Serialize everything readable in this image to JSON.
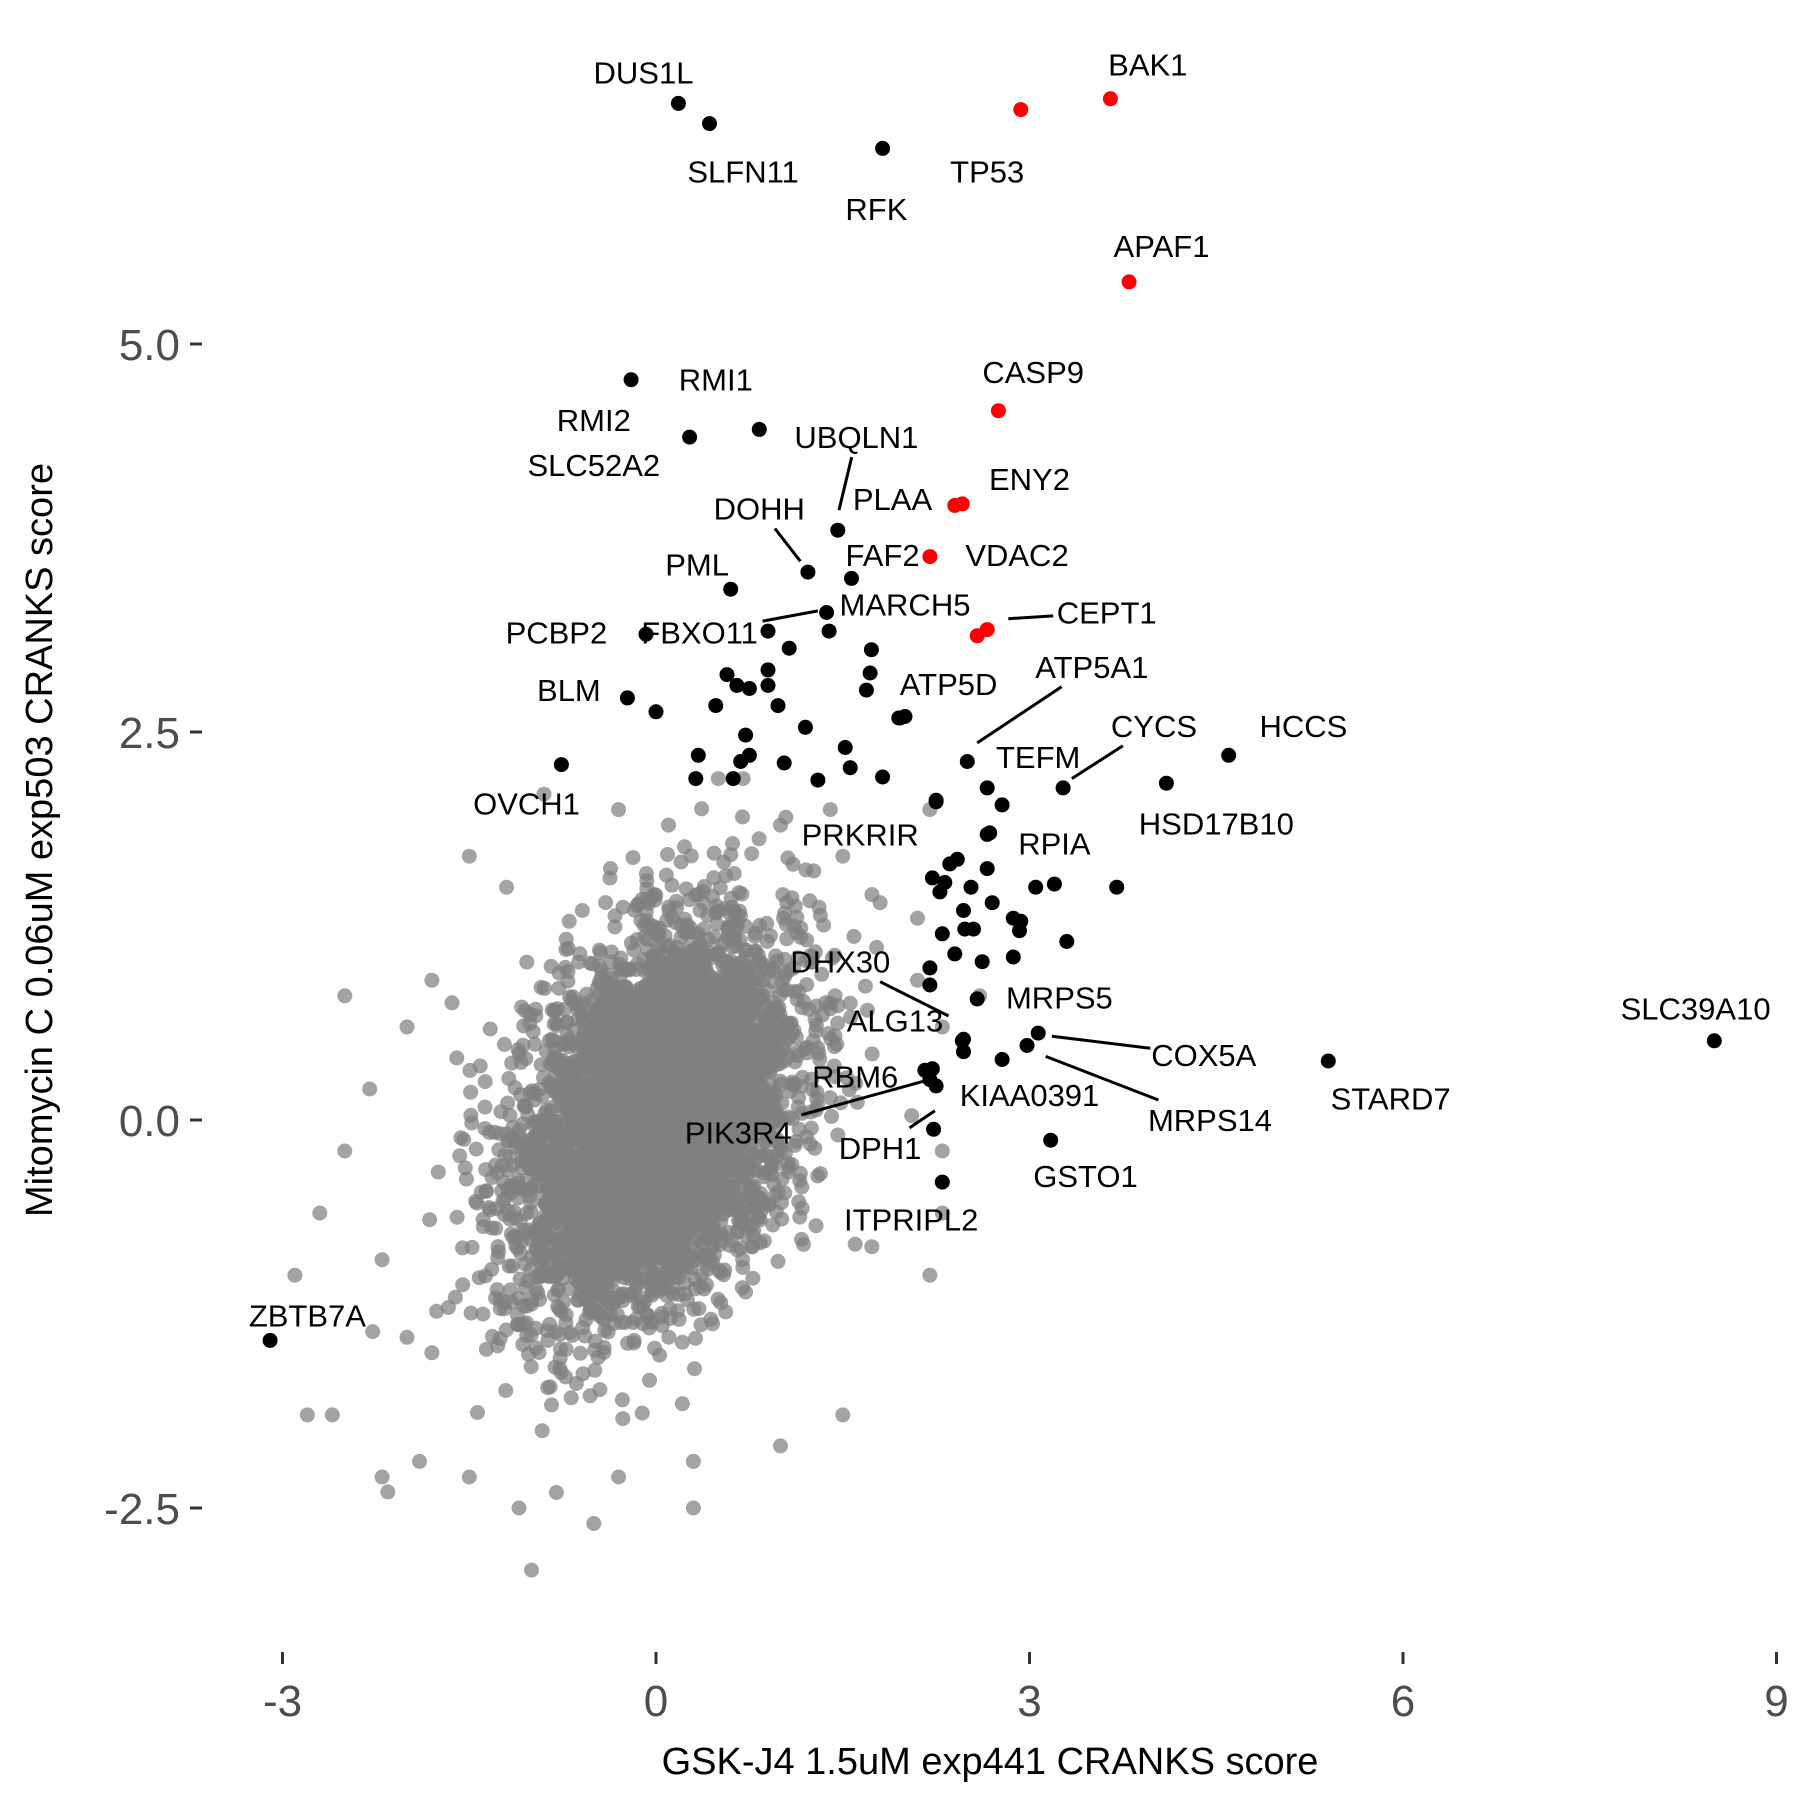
{
  "chart_data": {
    "type": "scatter",
    "title": "",
    "xlabel": "GSK-J4 1.5uM exp441 CRANKS score",
    "ylabel": "Mitomycin C 0.06uM exp503 CRANKS score",
    "xlim": [
      -3.4,
      9.0
    ],
    "ylim": [
      -3.4,
      7.2
    ],
    "x_ticks": [
      -3,
      0,
      3,
      6,
      9
    ],
    "x_tick_labels": [
      "-3",
      "0",
      "3",
      "6",
      "9"
    ],
    "y_ticks": [
      -2.5,
      0.0,
      2.5,
      5.0
    ],
    "y_tick_labels": [
      "-2.5",
      "0.0",
      "2.5",
      "5.0"
    ],
    "grid": false,
    "legend": "none",
    "colors": {
      "background": "#808080",
      "highlight": "#000000",
      "pathway": "#ff0000",
      "tick_text": "#4d4d4d"
    },
    "background_cloud": {
      "description_note": "",
      "count": 5000,
      "center": [
        0.0,
        0.0
      ],
      "sd": [
        0.55,
        0.6
      ],
      "correlation": 0.35
    },
    "background_outliers": [
      {
        "x": -2.5,
        "y": 0.8
      },
      {
        "x": -2.3,
        "y": 0.2
      },
      {
        "x": -2.0,
        "y": 0.6
      },
      {
        "x": -2.7,
        "y": -0.6
      },
      {
        "x": -2.5,
        "y": -0.2
      },
      {
        "x": -2.9,
        "y": -1.0
      },
      {
        "x": -2.8,
        "y": -1.9
      },
      {
        "x": -2.6,
        "y": -1.9
      },
      {
        "x": -2.2,
        "y": -2.3
      },
      {
        "x": -1.9,
        "y": -2.2
      },
      {
        "x": -2.0,
        "y": -1.4
      },
      {
        "x": -1.5,
        "y": -2.3
      },
      {
        "x": -1.1,
        "y": -2.5
      },
      {
        "x": -0.8,
        "y": -2.4
      },
      {
        "x": -1.0,
        "y": -2.9
      },
      {
        "x": -0.5,
        "y": -2.6
      },
      {
        "x": 0.3,
        "y": -2.2
      },
      {
        "x": 0.3,
        "y": -2.5
      },
      {
        "x": 1.0,
        "y": -2.1
      },
      {
        "x": 1.5,
        "y": -1.9
      },
      {
        "x": -1.5,
        "y": 1.7
      },
      {
        "x": -1.2,
        "y": 1.5
      },
      {
        "x": -0.9,
        "y": 2.1
      },
      {
        "x": -0.3,
        "y": 2.0
      },
      {
        "x": 0.1,
        "y": 1.9
      },
      {
        "x": 0.5,
        "y": 2.2
      },
      {
        "x": 0.7,
        "y": 2.2
      },
      {
        "x": 1.0,
        "y": 1.9
      },
      {
        "x": 1.4,
        "y": 2.0
      },
      {
        "x": 2.2,
        "y": 2.0
      },
      {
        "x": 1.5,
        "y": 1.7
      },
      {
        "x": 1.8,
        "y": 1.4
      },
      {
        "x": 2.1,
        "y": 0.9
      },
      {
        "x": 2.3,
        "y": 0.6
      },
      {
        "x": 2.3,
        "y": -0.2
      },
      {
        "x": 2.3,
        "y": -0.6
      },
      {
        "x": 2.2,
        "y": -1.0
      },
      {
        "x": 1.6,
        "y": -0.8
      },
      {
        "x": 2.1,
        "y": 1.3
      },
      {
        "x": 2.6,
        "y": 0.8
      },
      {
        "x": -1.8,
        "y": 0.9
      },
      {
        "x": -1.6,
        "y": 0.4
      },
      {
        "x": -2.2,
        "y": -0.9
      },
      {
        "x": -1.8,
        "y": -1.5
      },
      {
        "x": -0.3,
        "y": -2.3
      }
    ],
    "highlighted_points": [
      {
        "label": "DUS1L",
        "x": 0.18,
        "y": 6.55,
        "color": "#000000"
      },
      {
        "label": "SLFN11",
        "x": 0.43,
        "y": 6.42,
        "color": "#000000"
      },
      {
        "label": "RFK",
        "x": 1.82,
        "y": 6.26,
        "color": "#000000"
      },
      {
        "label": "TP53",
        "x": 2.93,
        "y": 6.51,
        "color": "#ff0000"
      },
      {
        "label": "BAK1",
        "x": 3.65,
        "y": 6.58,
        "color": "#ff0000"
      },
      {
        "label": "APAF1",
        "x": 3.8,
        "y": 5.4,
        "color": "#ff0000"
      },
      {
        "label": "RMI1",
        "x": -0.2,
        "y": 4.77,
        "color": "#000000"
      },
      {
        "label": "RMI2",
        "x": 0.27,
        "y": 4.4,
        "color": "#000000"
      },
      {
        "label": "SLC52A2",
        "x": 0.83,
        "y": 4.45,
        "color": "#000000"
      },
      {
        "label": "CASP9",
        "x": 2.75,
        "y": 4.57,
        "color": "#ff0000"
      },
      {
        "label": "UBQLN1",
        "x": 1.46,
        "y": 3.8,
        "color": "#000000"
      },
      {
        "label": "PLAA",
        "x": 2.4,
        "y": 3.96,
        "color": "#ff0000"
      },
      {
        "label": "ENY2",
        "x": 2.46,
        "y": 3.97,
        "color": "#ff0000"
      },
      {
        "label": "DOHH",
        "x": 1.22,
        "y": 3.53,
        "color": "#000000"
      },
      {
        "label": "FAF2",
        "x": 1.57,
        "y": 3.49,
        "color": "#000000"
      },
      {
        "label": "VDAC2",
        "x": 2.2,
        "y": 3.63,
        "color": "#ff0000"
      },
      {
        "label": "PML",
        "x": 0.6,
        "y": 3.42,
        "color": "#000000"
      },
      {
        "label": "FBXO11",
        "x": 1.37,
        "y": 3.27,
        "color": "#000000"
      },
      {
        "label": "MARCH5",
        "x": 1.39,
        "y": 3.15,
        "color": "#000000"
      },
      {
        "label": "CEPT1",
        "x": 2.66,
        "y": 3.16,
        "color": "#ff0000"
      },
      {
        "label": "PCBP2",
        "x": -0.08,
        "y": 3.13,
        "color": "#000000"
      },
      {
        "label": "",
        "x": 0.9,
        "y": 3.15,
        "color": "#000000"
      },
      {
        "label": "",
        "x": 2.58,
        "y": 3.12,
        "color": "#ff0000"
      },
      {
        "label": "BLM",
        "x": 0.0,
        "y": 2.63,
        "color": "#000000"
      },
      {
        "label": "",
        "x": -0.23,
        "y": 2.72,
        "color": "#000000"
      },
      {
        "label": "ATP5A1",
        "x": 2.5,
        "y": 2.31,
        "color": "#000000"
      },
      {
        "label": "ATP5D",
        "x": 1.95,
        "y": 2.59,
        "color": "#000000"
      },
      {
        "label": "TEFM",
        "x": 2.66,
        "y": 2.14,
        "color": "#000000"
      },
      {
        "label": "CYCS",
        "x": 3.27,
        "y": 2.14,
        "color": "#000000"
      },
      {
        "label": "HCCS",
        "x": 4.6,
        "y": 2.35,
        "color": "#000000"
      },
      {
        "label": "HSD17B10",
        "x": 4.1,
        "y": 2.17,
        "color": "#000000"
      },
      {
        "label": "OVCH1",
        "x": -0.76,
        "y": 2.29,
        "color": "#000000"
      },
      {
        "label": "PRKRIR",
        "x": 2.25,
        "y": 2.05,
        "color": "#000000"
      },
      {
        "label": "RPIA",
        "x": 2.68,
        "y": 1.85,
        "color": "#000000"
      },
      {
        "label": "",
        "x": 3.7,
        "y": 1.5,
        "color": "#000000"
      },
      {
        "label": "",
        "x": 3.3,
        "y": 1.15,
        "color": "#000000"
      },
      {
        "label": "DHX30",
        "x": 2.2,
        "y": 0.87,
        "color": "#000000"
      },
      {
        "label": "MRPS5",
        "x": 2.58,
        "y": 0.78,
        "color": "#000000"
      },
      {
        "label": "ALG13",
        "x": 2.47,
        "y": 0.52,
        "color": "#000000"
      },
      {
        "label": "COX5A",
        "x": 3.07,
        "y": 0.56,
        "color": "#000000"
      },
      {
        "label": "SLC39A10",
        "x": 8.5,
        "y": 0.51,
        "color": "#000000"
      },
      {
        "label": "STARD7",
        "x": 5.4,
        "y": 0.38,
        "color": "#000000"
      },
      {
        "label": "MRPS14",
        "x": 2.98,
        "y": 0.48,
        "color": "#000000"
      },
      {
        "label": "RBM6",
        "x": 2.2,
        "y": 0.26,
        "color": "#000000"
      },
      {
        "label": "KIAA0391",
        "x": 2.25,
        "y": 0.22,
        "color": "#000000"
      },
      {
        "label": "PIK3R4",
        "x": 2.16,
        "y": 0.32,
        "color": "#000000"
      },
      {
        "label": "DPH1",
        "x": 2.23,
        "y": -0.06,
        "color": "#000000"
      },
      {
        "label": "GSTO1",
        "x": 3.17,
        "y": -0.13,
        "color": "#000000"
      },
      {
        "label": "ITPRIPL2",
        "x": 2.3,
        "y": -0.4,
        "color": "#000000"
      },
      {
        "label": "ZBTB7A",
        "x": -3.1,
        "y": -1.42,
        "color": "#000000"
      },
      {
        "label": "",
        "x": 0.57,
        "y": 2.87,
        "color": "#000000"
      },
      {
        "label": "",
        "x": 0.9,
        "y": 2.9,
        "color": "#000000"
      },
      {
        "label": "",
        "x": 1.07,
        "y": 3.04,
        "color": "#000000"
      },
      {
        "label": "",
        "x": 0.75,
        "y": 2.78,
        "color": "#000000"
      },
      {
        "label": "",
        "x": 0.65,
        "y": 2.8,
        "color": "#000000"
      },
      {
        "label": "",
        "x": 0.9,
        "y": 2.8,
        "color": "#000000"
      },
      {
        "label": "",
        "x": 0.48,
        "y": 2.67,
        "color": "#000000"
      },
      {
        "label": "",
        "x": 0.98,
        "y": 2.67,
        "color": "#000000"
      },
      {
        "label": "",
        "x": 1.73,
        "y": 3.03,
        "color": "#000000"
      },
      {
        "label": "",
        "x": 1.72,
        "y": 2.88,
        "color": "#000000"
      },
      {
        "label": "",
        "x": 1.69,
        "y": 2.77,
        "color": "#000000"
      },
      {
        "label": "",
        "x": 1.96,
        "y": 2.59,
        "color": "#000000"
      },
      {
        "label": "",
        "x": 2.0,
        "y": 2.6,
        "color": "#000000"
      },
      {
        "label": "",
        "x": 1.2,
        "y": 2.53,
        "color": "#000000"
      },
      {
        "label": "",
        "x": 0.72,
        "y": 2.48,
        "color": "#000000"
      },
      {
        "label": "",
        "x": 0.34,
        "y": 2.35,
        "color": "#000000"
      },
      {
        "label": "",
        "x": 0.75,
        "y": 2.35,
        "color": "#000000"
      },
      {
        "label": "",
        "x": 0.68,
        "y": 2.31,
        "color": "#000000"
      },
      {
        "label": "",
        "x": 1.03,
        "y": 2.3,
        "color": "#000000"
      },
      {
        "label": "",
        "x": 1.52,
        "y": 2.4,
        "color": "#000000"
      },
      {
        "label": "",
        "x": 1.56,
        "y": 2.27,
        "color": "#000000"
      },
      {
        "label": "",
        "x": 0.32,
        "y": 2.2,
        "color": "#000000"
      },
      {
        "label": "",
        "x": 0.62,
        "y": 2.2,
        "color": "#000000"
      },
      {
        "label": "",
        "x": 1.3,
        "y": 2.19,
        "color": "#000000"
      },
      {
        "label": "",
        "x": 1.82,
        "y": 2.21,
        "color": "#000000"
      },
      {
        "label": "",
        "x": 2.25,
        "y": 2.06,
        "color": "#000000"
      },
      {
        "label": "",
        "x": 2.78,
        "y": 2.03,
        "color": "#000000"
      },
      {
        "label": "",
        "x": 2.66,
        "y": 1.84,
        "color": "#000000"
      },
      {
        "label": "",
        "x": 2.42,
        "y": 1.68,
        "color": "#000000"
      },
      {
        "label": "",
        "x": 2.36,
        "y": 1.65,
        "color": "#000000"
      },
      {
        "label": "",
        "x": 2.66,
        "y": 1.62,
        "color": "#000000"
      },
      {
        "label": "",
        "x": 2.22,
        "y": 1.56,
        "color": "#000000"
      },
      {
        "label": "",
        "x": 2.32,
        "y": 1.53,
        "color": "#000000"
      },
      {
        "label": "",
        "x": 2.28,
        "y": 1.47,
        "color": "#000000"
      },
      {
        "label": "",
        "x": 2.53,
        "y": 1.5,
        "color": "#000000"
      },
      {
        "label": "",
        "x": 2.47,
        "y": 1.35,
        "color": "#000000"
      },
      {
        "label": "",
        "x": 2.7,
        "y": 1.4,
        "color": "#000000"
      },
      {
        "label": "",
        "x": 3.05,
        "y": 1.5,
        "color": "#000000"
      },
      {
        "label": "",
        "x": 3.2,
        "y": 1.52,
        "color": "#000000"
      },
      {
        "label": "",
        "x": 2.87,
        "y": 1.3,
        "color": "#000000"
      },
      {
        "label": "",
        "x": 2.93,
        "y": 1.28,
        "color": "#000000"
      },
      {
        "label": "",
        "x": 2.48,
        "y": 1.23,
        "color": "#000000"
      },
      {
        "label": "",
        "x": 2.55,
        "y": 1.23,
        "color": "#000000"
      },
      {
        "label": "",
        "x": 2.3,
        "y": 1.2,
        "color": "#000000"
      },
      {
        "label": "",
        "x": 2.92,
        "y": 1.22,
        "color": "#000000"
      },
      {
        "label": "",
        "x": 2.4,
        "y": 1.07,
        "color": "#000000"
      },
      {
        "label": "",
        "x": 2.62,
        "y": 1.02,
        "color": "#000000"
      },
      {
        "label": "",
        "x": 2.87,
        "y": 1.05,
        "color": "#000000"
      },
      {
        "label": "",
        "x": 2.2,
        "y": 0.98,
        "color": "#000000"
      },
      {
        "label": "",
        "x": 2.46,
        "y": 0.51,
        "color": "#000000"
      },
      {
        "label": "",
        "x": 2.47,
        "y": 0.44,
        "color": "#000000"
      },
      {
        "label": "",
        "x": 2.78,
        "y": 0.39,
        "color": "#000000"
      },
      {
        "label": "",
        "x": 2.22,
        "y": 0.33,
        "color": "#000000"
      }
    ],
    "annotations": [
      {
        "label": "DUS1L",
        "tx": -0.1,
        "ty": 6.75
      },
      {
        "label": "SLFN11",
        "tx": 0.7,
        "ty": 6.11
      },
      {
        "label": "RFK",
        "tx": 1.77,
        "ty": 5.87
      },
      {
        "label": "TP53",
        "tx": 2.66,
        "ty": 6.11
      },
      {
        "label": "BAK1",
        "tx": 3.95,
        "ty": 6.8
      },
      {
        "label": "APAF1",
        "tx": 4.06,
        "ty": 5.63
      },
      {
        "label": "CASP9",
        "tx": 3.03,
        "ty": 4.82
      },
      {
        "label": "RMI1",
        "tx": 0.48,
        "ty": 4.77
      },
      {
        "label": "RMI2",
        "tx": -0.5,
        "ty": 4.51
      },
      {
        "label": "SLC52A2",
        "tx": -0.5,
        "ty": 4.22
      },
      {
        "label": "UBQLN1",
        "tx": 1.61,
        "ty": 4.4,
        "line_to": [
          1.47,
          3.93
        ]
      },
      {
        "label": "PLAA",
        "tx": 1.9,
        "ty": 4.0
      },
      {
        "label": "ENY2",
        "tx": 3.0,
        "ty": 4.13
      },
      {
        "label": "DOHH",
        "tx": 0.83,
        "ty": 3.94,
        "line_to": [
          1.16,
          3.6
        ]
      },
      {
        "label": "FAF2",
        "tx": 1.82,
        "ty": 3.64
      },
      {
        "label": "VDAC2",
        "tx": 2.9,
        "ty": 3.64
      },
      {
        "label": "PML",
        "tx": 0.33,
        "ty": 3.58
      },
      {
        "label": "MARCH5",
        "tx": 2.0,
        "ty": 3.32
      },
      {
        "label": "CEPT1",
        "tx": 3.62,
        "ty": 3.27,
        "line_to": [
          2.83,
          3.23
        ]
      },
      {
        "label": "FBXO11",
        "tx": 0.35,
        "ty": 3.14,
        "line_to": [
          1.3,
          3.28
        ]
      },
      {
        "label": "PCBP2",
        "tx": -0.8,
        "ty": 3.14
      },
      {
        "label": "BLM",
        "tx": -0.7,
        "ty": 2.77
      },
      {
        "label": "ATP5A1",
        "tx": 3.5,
        "ty": 2.92,
        "line_to": [
          2.58,
          2.43
        ]
      },
      {
        "label": "ATP5D",
        "tx": 2.35,
        "ty": 2.81
      },
      {
        "label": "TEFM",
        "tx": 3.07,
        "ty": 2.34
      },
      {
        "label": "CYCS",
        "tx": 4.0,
        "ty": 2.54,
        "line_to": [
          3.34,
          2.2
        ]
      },
      {
        "label": "HCCS",
        "tx": 5.2,
        "ty": 2.54
      },
      {
        "label": "HSD17B10",
        "tx": 4.5,
        "ty": 1.91
      },
      {
        "label": "OVCH1",
        "tx": -1.04,
        "ty": 2.04
      },
      {
        "label": "PRKRIR",
        "tx": 1.64,
        "ty": 1.84
      },
      {
        "label": "RPIA",
        "tx": 3.2,
        "ty": 1.78
      },
      {
        "label": "DHX30",
        "tx": 1.48,
        "ty": 1.02,
        "line_to": [
          2.35,
          0.67
        ]
      },
      {
        "label": "MRPS5",
        "tx": 3.24,
        "ty": 0.79
      },
      {
        "label": "ALG13",
        "tx": 1.92,
        "ty": 0.64
      },
      {
        "label": "COX5A",
        "tx": 4.4,
        "ty": 0.42,
        "line_to": [
          3.18,
          0.54
        ]
      },
      {
        "label": "SLC39A10",
        "tx": 8.35,
        "ty": 0.72
      },
      {
        "label": "STARD7",
        "tx": 5.9,
        "ty": 0.14
      },
      {
        "label": "MRPS14",
        "tx": 4.45,
        "ty": 0.0,
        "line_to": [
          3.13,
          0.41
        ]
      },
      {
        "label": "RBM6",
        "tx": 1.6,
        "ty": 0.28
      },
      {
        "label": "KIAA0391",
        "tx": 3.0,
        "ty": 0.16
      },
      {
        "label": "PIK3R4",
        "tx": 0.66,
        "ty": -0.08,
        "line_to": [
          2.15,
          0.25
        ]
      },
      {
        "label": "DPH1",
        "tx": 1.8,
        "ty": -0.18,
        "line_to": [
          2.24,
          0.06
        ]
      },
      {
        "label": "GSTO1",
        "tx": 3.45,
        "ty": -0.36
      },
      {
        "label": "ITPRIPL2",
        "tx": 2.05,
        "ty": -0.64
      },
      {
        "label": "ZBTB7A",
        "tx": -2.8,
        "ty": -1.26
      }
    ]
  }
}
